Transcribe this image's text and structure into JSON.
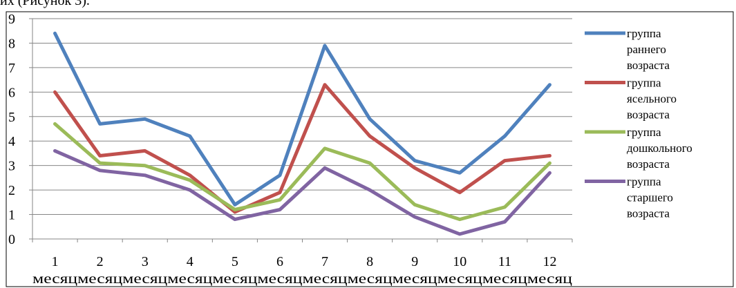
{
  "caption_fragment": "их (Рисунок 3).",
  "chart_data": {
    "type": "line",
    "x": [
      1,
      2,
      3,
      4,
      5,
      6,
      7,
      8,
      9,
      10,
      11,
      12
    ],
    "x_tick_labels": [
      "1",
      "2",
      "3",
      "4",
      "5",
      "6",
      "7",
      "8",
      "9",
      "10",
      "11",
      "12"
    ],
    "x_unit_label": "месяц",
    "ylim": [
      0,
      9
    ],
    "y_ticks": [
      0,
      1,
      2,
      3,
      4,
      5,
      6,
      7,
      8,
      9
    ],
    "grid": "horizontal",
    "legend_position": "right",
    "series": [
      {
        "name": "группа раннего возраста",
        "legend_lines": [
          "группа",
          "раннего",
          "возраста"
        ],
        "color": "#4F81BD",
        "values": [
          8.4,
          4.7,
          4.9,
          4.2,
          1.4,
          2.6,
          7.9,
          4.9,
          3.2,
          2.7,
          4.2,
          6.3
        ]
      },
      {
        "name": "группа ясельного возраста",
        "legend_lines": [
          "группа",
          "ясельного",
          "возраста"
        ],
        "color": "#C0504D",
        "values": [
          6.0,
          3.4,
          3.6,
          2.6,
          1.1,
          1.9,
          6.3,
          4.2,
          2.9,
          1.9,
          3.2,
          3.4
        ]
      },
      {
        "name": "группа дошкольного возраста",
        "legend_lines": [
          "группа",
          "дошкольного",
          "возраста"
        ],
        "color": "#9BBB59",
        "values": [
          4.7,
          3.1,
          3.0,
          2.4,
          1.2,
          1.6,
          3.7,
          3.1,
          1.4,
          0.8,
          1.3,
          3.1
        ]
      },
      {
        "name": "группа старшего возраста",
        "legend_lines": [
          "группа",
          "старшего",
          "возраста"
        ],
        "color": "#8064A2",
        "values": [
          3.6,
          2.8,
          2.6,
          2.0,
          0.8,
          1.2,
          2.9,
          2.0,
          0.9,
          0.2,
          0.7,
          2.7
        ]
      }
    ]
  }
}
